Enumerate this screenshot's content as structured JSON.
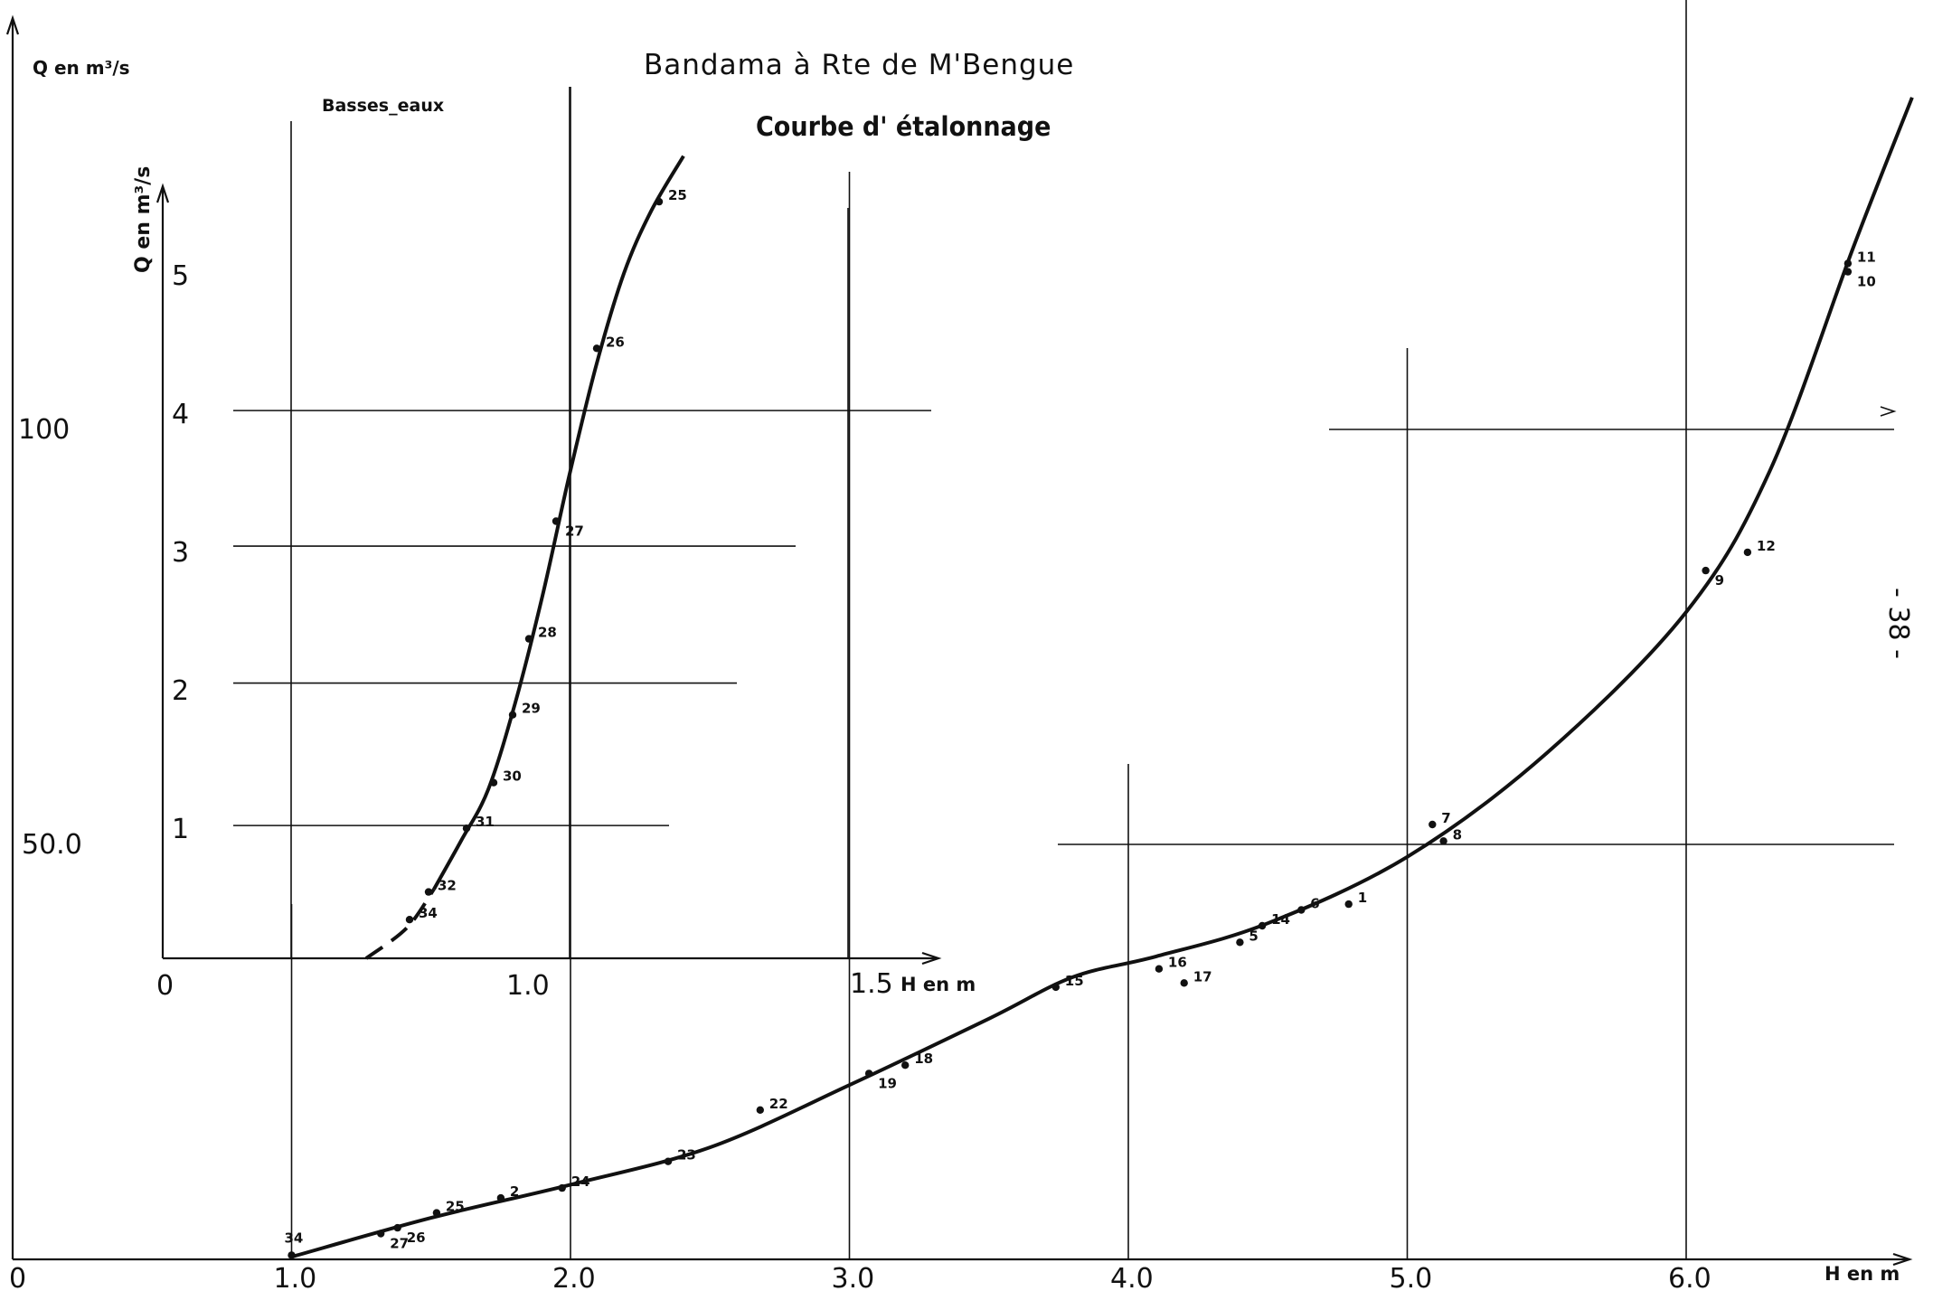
{
  "title": "Bandama  à  Rte de M'Bengue",
  "subtitle": "Courbe  d' étalonnage",
  "page_number": "- 38 -",
  "colors": {
    "ink": "#111111",
    "background": "#ffffff"
  },
  "chart_data": [
    {
      "type": "scatter",
      "title": "Bandama  à  Rte de M'Bengue",
      "xlabel": "H en m",
      "ylabel": "Q en m³/s",
      "xlim": [
        0,
        7.0
      ],
      "ylim": [
        0,
        152
      ],
      "x_ticks": [
        "0",
        "1.0",
        "2.0",
        "3.0",
        "4.0",
        "5.0",
        "6.0"
      ],
      "y_ticks": [
        "50.0",
        "100"
      ],
      "grid": true,
      "points": [
        {
          "label": "34",
          "x": 1.0,
          "y": 0.5
        },
        {
          "label": "27",
          "x": 1.32,
          "y": 3.1
        },
        {
          "label": "26",
          "x": 1.38,
          "y": 3.8
        },
        {
          "label": "25",
          "x": 1.52,
          "y": 5.6
        },
        {
          "label": "2",
          "x": 1.75,
          "y": 7.4
        },
        {
          "label": "24",
          "x": 1.97,
          "y": 8.6
        },
        {
          "label": "23",
          "x": 2.35,
          "y": 11.8
        },
        {
          "label": "22",
          "x": 2.68,
          "y": 18.0
        },
        {
          "label": "19",
          "x": 3.07,
          "y": 22.4
        },
        {
          "label": "18",
          "x": 3.2,
          "y": 23.4
        },
        {
          "label": "15",
          "x": 3.74,
          "y": 32.8
        },
        {
          "label": "16",
          "x": 4.11,
          "y": 35.0
        },
        {
          "label": "17",
          "x": 4.2,
          "y": 33.3
        },
        {
          "label": "5",
          "x": 4.4,
          "y": 38.2
        },
        {
          "label": "14",
          "x": 4.48,
          "y": 40.2
        },
        {
          "label": "6",
          "x": 4.62,
          "y": 42.1
        },
        {
          "label": "1",
          "x": 4.79,
          "y": 42.8
        },
        {
          "label": "7",
          "x": 5.09,
          "y": 52.4
        },
        {
          "label": "8",
          "x": 5.13,
          "y": 50.4
        },
        {
          "label": "9",
          "x": 6.07,
          "y": 83.0
        },
        {
          "label": "12",
          "x": 6.22,
          "y": 85.2
        },
        {
          "label": "11",
          "x": 6.58,
          "y": 120.0
        },
        {
          "label": "10",
          "x": 6.58,
          "y": 119.0
        }
      ],
      "curve": [
        [
          1.0,
          0.3
        ],
        [
          1.5,
          5.0
        ],
        [
          2.0,
          9.0
        ],
        [
          2.5,
          13.5
        ],
        [
          3.0,
          21.0
        ],
        [
          3.5,
          29.0
        ],
        [
          3.8,
          34.0
        ],
        [
          4.1,
          36.5
        ],
        [
          4.5,
          40.5
        ],
        [
          5.0,
          48.5
        ],
        [
          5.5,
          61.0
        ],
        [
          6.0,
          78.0
        ],
        [
          6.3,
          95.0
        ],
        [
          6.6,
          122.0
        ],
        [
          6.81,
          140.0
        ]
      ]
    },
    {
      "type": "scatter",
      "title": "Basses_eaux",
      "xlabel": "H en m",
      "ylabel": "Q en m³/s",
      "xlim": [
        0,
        2.15
      ],
      "ylim": [
        0,
        5.5
      ],
      "x_ticks": [
        "0",
        "1.0",
        "1.5"
      ],
      "y_ticks": [
        "1",
        "2",
        "3",
        "4",
        "5"
      ],
      "grid": true,
      "points": [
        {
          "label": "34",
          "x": 0.91,
          "y": 0.28
        },
        {
          "label": "32",
          "x": 0.98,
          "y": 0.48
        },
        {
          "label": "31",
          "x": 1.12,
          "y": 0.94
        },
        {
          "label": "30",
          "x": 1.22,
          "y": 1.27
        },
        {
          "label": "29",
          "x": 1.29,
          "y": 1.76
        },
        {
          "label": "28",
          "x": 1.35,
          "y": 2.31
        },
        {
          "label": "27",
          "x": 1.45,
          "y": 3.16
        },
        {
          "label": "26",
          "x": 1.6,
          "y": 4.41
        },
        {
          "label": "25",
          "x": 1.83,
          "y": 5.47
        }
      ],
      "curve": [
        [
          0.75,
          0.0
        ],
        [
          0.9,
          0.22
        ],
        [
          1.0,
          0.5
        ],
        [
          1.1,
          0.85
        ],
        [
          1.2,
          1.22
        ],
        [
          1.3,
          1.85
        ],
        [
          1.4,
          2.62
        ],
        [
          1.5,
          3.5
        ],
        [
          1.6,
          4.3
        ],
        [
          1.7,
          4.95
        ],
        [
          1.8,
          5.4
        ],
        [
          1.92,
          5.8
        ]
      ]
    }
  ]
}
